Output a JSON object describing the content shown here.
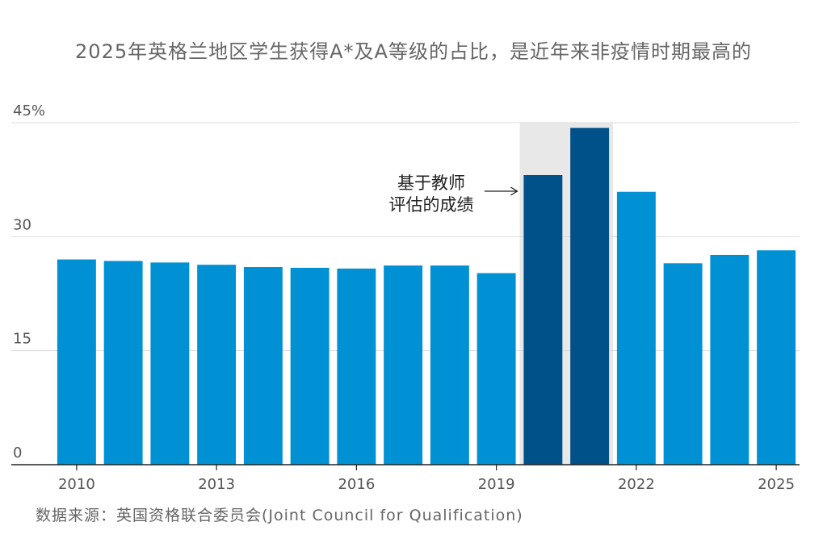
{
  "title": "2025年英格兰地区学生获得A*及A等级的占比，是近年来非疫情时期最高的",
  "source": "数据来源：英国资格联合委员会(Joint Council for Qualification)",
  "colors": {
    "normal": "#0091D4",
    "highlight": "#00508A",
    "shade": "#E8E8E8",
    "grid": "#DDDDDD",
    "axis": "#222222"
  },
  "chart_data": {
    "type": "bar",
    "categories": [
      "2010",
      "2011",
      "2012",
      "2013",
      "2014",
      "2015",
      "2016",
      "2017",
      "2018",
      "2019",
      "2020",
      "2021",
      "2022",
      "2023",
      "2024",
      "2025"
    ],
    "values": [
      27.0,
      26.8,
      26.6,
      26.3,
      26.0,
      25.9,
      25.8,
      26.2,
      26.2,
      25.2,
      38.1,
      44.3,
      35.9,
      26.5,
      27.6,
      28.2
    ],
    "highlight_categories": [
      "2020",
      "2021"
    ],
    "shaded_categories": [
      "2020",
      "2021"
    ],
    "ylim": [
      0,
      45
    ],
    "yticks": [
      0,
      15,
      30,
      45
    ],
    "ytick_labels": [
      "0",
      "15",
      "30",
      "45%"
    ],
    "xtick_labels": [
      "2010",
      "2013",
      "2016",
      "2019",
      "2022",
      "2025"
    ],
    "grid": true,
    "legend": "none",
    "annotation": {
      "lines": [
        "基于教师",
        "评估的成绩"
      ],
      "target_category": "2020"
    }
  }
}
